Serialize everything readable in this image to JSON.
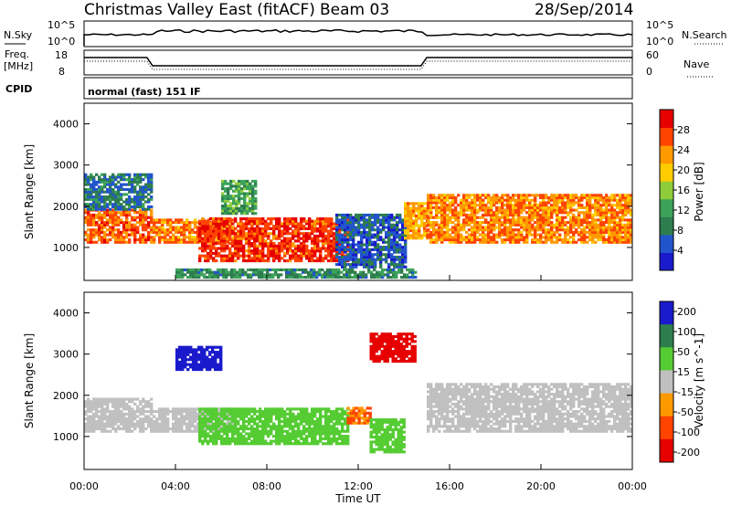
{
  "header": {
    "title": "Christmas Valley East (fitACF)",
    "beam": "Beam 03",
    "date": "28/Sep/2014"
  },
  "panels": {
    "noise": {
      "left_label": "N.Sky",
      "right_label": "N.Search",
      "ticks_left": [
        "10^5",
        "10^0"
      ],
      "ticks_right": [
        "10^5",
        "10^0"
      ]
    },
    "freq": {
      "left_label_1": "Freq.",
      "left_label_2": "[MHz]",
      "right_label": "Nave",
      "ticks_left": [
        "18",
        "8"
      ],
      "ticks_right": [
        "60",
        "0"
      ]
    },
    "cpid": {
      "label": "CPID",
      "value": "normal (fast) 151 IF"
    }
  },
  "x_axis": {
    "label": "Time UT",
    "ticks": [
      "00:00",
      "04:00",
      "08:00",
      "12:00",
      "16:00",
      "20:00",
      "00:00"
    ]
  },
  "colors": {
    "power": [
      "#1a1acc",
      "#2255cc",
      "#2e7d4f",
      "#3ca25a",
      "#8fcc3a",
      "#ffcc00",
      "#ff9900",
      "#ff4400",
      "#e60000"
    ],
    "velocity": [
      "#1a1acc",
      "#2e7d4f",
      "#55cc33",
      "#c0c0c0",
      "#ff9900",
      "#ff4400",
      "#e60000"
    ]
  },
  "chart_data": [
    {
      "type": "heatmap",
      "parameter": "Power",
      "ylabel": "Slant Range [km]",
      "xlabel": "",
      "x_range_hours": [
        0,
        24
      ],
      "y_range_km": [
        200,
        4500
      ],
      "yticks": [
        1000,
        2000,
        3000,
        4000
      ],
      "colorbar": {
        "label": "Power [dB]",
        "ticks": [
          4,
          8,
          12,
          16,
          20,
          24,
          28
        ],
        "range": [
          0,
          32
        ]
      },
      "regions": [
        {
          "t_start": 0.0,
          "t_end": 3.0,
          "r_low": 1100,
          "r_high": 1900,
          "value": 26
        },
        {
          "t_start": 0.0,
          "t_end": 3.0,
          "r_low": 1900,
          "r_high": 2800,
          "value": 8
        },
        {
          "t_start": 3.0,
          "t_end": 6.5,
          "r_low": 1100,
          "r_high": 1700,
          "value": 24
        },
        {
          "t_start": 5.0,
          "t_end": 11.5,
          "r_low": 650,
          "r_high": 1700,
          "value": 28
        },
        {
          "t_start": 6.0,
          "t_end": 7.5,
          "r_low": 1800,
          "r_high": 2600,
          "value": 12
        },
        {
          "t_start": 11.0,
          "t_end": 14.0,
          "r_low": 500,
          "r_high": 1800,
          "value": 6
        },
        {
          "t_start": 14.0,
          "t_end": 15.0,
          "r_low": 1200,
          "r_high": 2100,
          "value": 22
        },
        {
          "t_start": 15.0,
          "t_end": 24.0,
          "r_low": 1100,
          "r_high": 2300,
          "value": 24
        },
        {
          "t_start": 4.0,
          "t_end": 14.5,
          "r_low": 250,
          "r_high": 450,
          "value": 10
        }
      ]
    },
    {
      "type": "heatmap",
      "parameter": "Velocity",
      "ylabel": "Slant Range [km]",
      "xlabel": "Time UT",
      "x_range_hours": [
        0,
        24
      ],
      "y_range_km": [
        200,
        4500
      ],
      "yticks": [
        1000,
        2000,
        3000,
        4000
      ],
      "colorbar": {
        "label": "Velocity [m s^-1]",
        "ticks": [
          200,
          100,
          50,
          15,
          -15,
          -50,
          -100,
          -200
        ],
        "range": [
          -250,
          250
        ]
      },
      "regions": [
        {
          "t_start": 0.0,
          "t_end": 3.0,
          "r_low": 1100,
          "r_high": 1900,
          "value": 0
        },
        {
          "t_start": 3.0,
          "t_end": 6.5,
          "r_low": 1100,
          "r_high": 1700,
          "value": 0
        },
        {
          "t_start": 5.0,
          "t_end": 11.5,
          "r_low": 800,
          "r_high": 1700,
          "value": 40
        },
        {
          "t_start": 11.5,
          "t_end": 12.5,
          "r_low": 1300,
          "r_high": 1700,
          "value": -60
        },
        {
          "t_start": 12.5,
          "t_end": 14.0,
          "r_low": 600,
          "r_high": 1400,
          "value": 40
        },
        {
          "t_start": 12.5,
          "t_end": 14.5,
          "r_low": 2800,
          "r_high": 3500,
          "value": -200
        },
        {
          "t_start": 15.0,
          "t_end": 24.0,
          "r_low": 1100,
          "r_high": 2300,
          "value": 0
        },
        {
          "t_start": 4.0,
          "t_end": 6.0,
          "r_low": 2600,
          "r_high": 3200,
          "value": 150
        }
      ]
    }
  ]
}
